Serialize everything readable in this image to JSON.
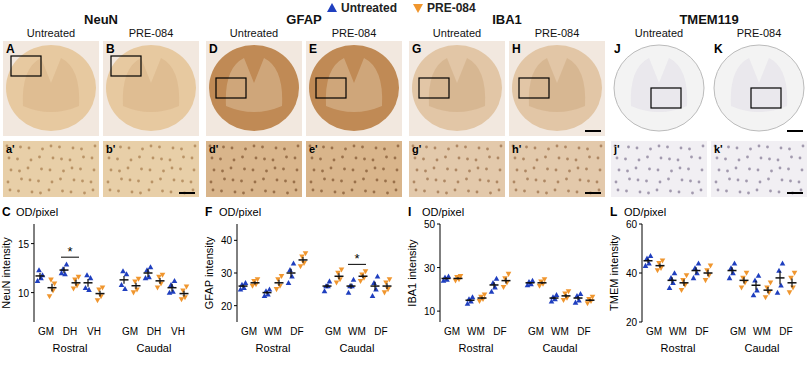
{
  "panels": [
    {
      "stain": "NeuN",
      "images": [
        {
          "letter": "A",
          "label": "Untreated",
          "zoom": "a'"
        },
        {
          "letter": "B",
          "label": "PRE-084",
          "zoom": "b'"
        }
      ]
    },
    {
      "stain": "GFAP",
      "images": [
        {
          "letter": "D",
          "label": "Untreated",
          "zoom": "d'"
        },
        {
          "letter": "E",
          "label": "PRE-084",
          "zoom": "e'"
        }
      ]
    },
    {
      "stain": "IBA1",
      "images": [
        {
          "letter": "G",
          "label": "Untreated",
          "zoom": "g'"
        },
        {
          "letter": "H",
          "label": "PRE-084",
          "zoom": "h'"
        }
      ]
    },
    {
      "stain": "TMEM119",
      "images": [
        {
          "letter": "J",
          "label": "Untreated",
          "zoom": "j'"
        },
        {
          "letter": "K",
          "label": "PRE-084",
          "zoom": "k'"
        }
      ]
    }
  ],
  "chart_data": [
    {
      "type": "scatter",
      "label": "C",
      "unit_label": "OD/pixel",
      "y_label": "NeuN intensity",
      "categories": [
        "GM",
        "DH",
        "VH",
        "GM",
        "DH",
        "VH"
      ],
      "groups": [
        {
          "label": "Rostral",
          "categories": [
            0,
            1,
            2
          ]
        },
        {
          "label": "Caudal",
          "categories": [
            3,
            4,
            5
          ]
        }
      ],
      "ylim": [
        7,
        17
      ],
      "yticks": [
        10,
        15
      ],
      "series": [
        {
          "name": "Untreated",
          "color": "#1f3fbf",
          "marker": "triangle-up",
          "values": [
            11.7,
            12.3,
            11.0,
            11.3,
            12.0,
            10.5
          ],
          "error": [
            0.3,
            0.3,
            0.4,
            0.4,
            0.4,
            0.4
          ],
          "points": [
            [
              11.2,
              11.8,
              12.3,
              11.5
            ],
            [
              12.0,
              12.9,
              12.4,
              11.9
            ],
            [
              10.5,
              11.5,
              11.8,
              10.3
            ],
            [
              10.8,
              11.9,
              12.2,
              10.4
            ],
            [
              11.5,
              12.6,
              12.3,
              11.6
            ],
            [
              10.0,
              11.2,
              10.8,
              10.1
            ]
          ]
        },
        {
          "name": "PRE-084",
          "color": "#f0962e",
          "marker": "triangle-down",
          "values": [
            10.5,
            11.0,
            9.9,
            10.7,
            11.2,
            9.9
          ],
          "error": [
            0.4,
            0.3,
            0.3,
            0.3,
            0.3,
            0.3
          ],
          "points": [
            [
              9.6,
              10.9,
              11.3,
              10.2
            ],
            [
              10.4,
              11.6,
              11.3,
              10.7
            ],
            [
              9.2,
              10.5,
              10.3,
              9.6
            ],
            [
              10.0,
              11.4,
              11.1,
              10.3
            ],
            [
              10.5,
              11.8,
              11.6,
              10.9
            ],
            [
              9.3,
              10.6,
              10.2,
              9.5
            ]
          ]
        }
      ],
      "annotations": [
        {
          "text": "*",
          "category": 1
        }
      ]
    },
    {
      "type": "scatter",
      "label": "F",
      "unit_label": "OD/pixel",
      "y_label": "GFAP intensity",
      "categories": [
        "GM",
        "WM",
        "DF",
        "GM",
        "WM",
        "DF"
      ],
      "groups": [
        {
          "label": "Rostral",
          "categories": [
            0,
            1,
            2
          ]
        },
        {
          "label": "Caudal",
          "categories": [
            3,
            4,
            5
          ]
        }
      ],
      "ylim": [
        15,
        45
      ],
      "yticks": [
        20,
        30,
        40
      ],
      "series": [
        {
          "name": "Untreated",
          "color": "#1f3fbf",
          "marker": "triangle-up",
          "values": [
            26,
            24,
            30,
            26,
            26,
            26
          ],
          "error": [
            0.5,
            0.5,
            1.3,
            0.6,
            0.8,
            1.3
          ],
          "points": [
            [
              25,
              27,
              26.5,
              25.5
            ],
            [
              23,
              25,
              24.5,
              23.5
            ],
            [
              27,
              33,
              31,
              29
            ],
            [
              24.5,
              27.5,
              26,
              26
            ],
            [
              24,
              28,
              26,
              26
            ],
            [
              23,
              29,
              27,
              25
            ]
          ]
        },
        {
          "name": "PRE-084",
          "color": "#f0962e",
          "marker": "triangle-down",
          "values": [
            27,
            27,
            34,
            29,
            29,
            26
          ],
          "error": [
            0.5,
            0.9,
            0.9,
            0.9,
            0.6,
            0.9
          ],
          "points": [
            [
              26,
              28,
              27.5,
              26.5
            ],
            [
              25,
              29,
              28,
              26
            ],
            [
              32,
              36,
              35,
              33
            ],
            [
              27,
              31,
              30,
              28
            ],
            [
              27.5,
              30.5,
              29.5,
              28.5
            ],
            [
              24,
              28,
              27,
              25
            ]
          ]
        }
      ],
      "annotations": [
        {
          "text": "*",
          "category": 4
        }
      ]
    },
    {
      "type": "scatter",
      "label": "I",
      "unit_label": "OD/pixel",
      "y_label": "IBA1 intensity",
      "categories": [
        "GM",
        "WM",
        "DF",
        "GM",
        "WM",
        "DF"
      ],
      "groups": [
        {
          "label": "Rostral",
          "categories": [
            0,
            1,
            2
          ]
        },
        {
          "label": "Caudal",
          "categories": [
            3,
            4,
            5
          ]
        }
      ],
      "ylim": [
        5,
        50
      ],
      "yticks": [
        10,
        30,
        50
      ],
      "series": [
        {
          "name": "Untreated",
          "color": "#1f3fbf",
          "marker": "triangle-up",
          "values": [
            25,
            15,
            22,
            23,
            16,
            16
          ],
          "error": [
            0.5,
            0.6,
            1.3,
            0.4,
            0.6,
            0.9
          ],
          "points": [
            [
              24,
              26,
              25.5,
              24.5
            ],
            [
              13.5,
              16.5,
              15.5,
              14.5
            ],
            [
              19,
              25,
              23,
              21
            ],
            [
              22,
              24,
              23.5,
              22.5
            ],
            [
              14.5,
              17.5,
              16.5,
              15.5
            ],
            [
              14,
              18,
              17,
              15
            ]
          ]
        },
        {
          "name": "PRE-084",
          "color": "#f0962e",
          "marker": "triangle-down",
          "values": [
            25,
            16,
            24,
            23,
            17,
            15
          ],
          "error": [
            0.5,
            0.6,
            1.3,
            0.6,
            0.9,
            0.6
          ],
          "points": [
            [
              24,
              26,
              25.5,
              24.5
            ],
            [
              14.5,
              17.5,
              16.5,
              15.5
            ],
            [
              21,
              27,
              25,
              23
            ],
            [
              21.5,
              24.5,
              23.5,
              22.5
            ],
            [
              15,
              19,
              18,
              16
            ],
            [
              13.5,
              16.5,
              15.5,
              14.5
            ]
          ]
        }
      ]
    },
    {
      "type": "scatter",
      "label": "L",
      "unit_label": "OD/pixel",
      "y_label": "TMEM intensity",
      "categories": [
        "GM",
        "WM",
        "DF",
        "GM",
        "WM",
        "DF"
      ],
      "groups": [
        {
          "label": "Rostral",
          "categories": [
            0,
            1,
            2
          ]
        },
        {
          "label": "Caudal",
          "categories": [
            3,
            4,
            5
          ]
        }
      ],
      "ylim": [
        20,
        60
      ],
      "yticks": [
        20,
        40,
        60
      ],
      "series": [
        {
          "name": "Untreated",
          "color": "#1f3fbf",
          "marker": "triangle-up",
          "values": [
            45,
            37,
            41,
            41,
            35,
            38
          ],
          "error": [
            0.9,
            1.3,
            1.3,
            1.3,
            1.8,
            2.7
          ],
          "points": [
            [
              43,
              47,
              46,
              44
            ],
            [
              34,
              40,
              38,
              36
            ],
            [
              38,
              44,
              42,
              40
            ],
            [
              38,
              44,
              42,
              40
            ],
            [
              31,
              39,
              37,
              33
            ],
            [
              32,
              44,
              41,
              35
            ]
          ]
        },
        {
          "name": "PRE-084",
          "color": "#f0962e",
          "marker": "triangle-down",
          "values": [
            43,
            36,
            40,
            37,
            33,
            36
          ],
          "error": [
            0.9,
            1.3,
            1.3,
            1.3,
            1.3,
            1.8
          ],
          "points": [
            [
              41,
              45,
              44,
              42
            ],
            [
              33,
              39,
              37,
              35
            ],
            [
              37,
              43,
              41,
              39
            ],
            [
              34,
              40,
              38,
              36
            ],
            [
              30,
              36,
              34,
              32
            ],
            [
              32,
              40,
              38,
              34
            ]
          ]
        }
      ]
    }
  ]
}
